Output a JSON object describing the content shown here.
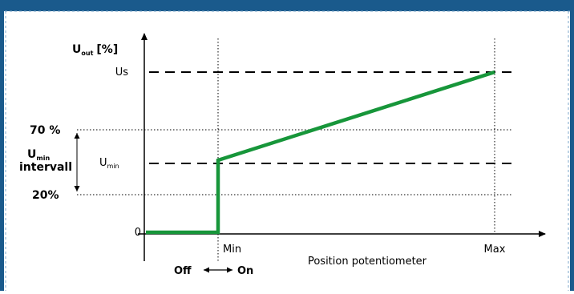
{
  "colors": {
    "frame": "#1a5a8c",
    "curve": "#17963a",
    "axis": "#000000",
    "guide": "#000000"
  },
  "diagram": {
    "y_axis_label_main": "U",
    "y_axis_label_sub": "out",
    "y_axis_label_unit": "[%]",
    "level_us": "Us",
    "level_umin_main": "U",
    "level_umin_sub": "min",
    "level_zero": "0",
    "label_70": "70 %",
    "label_20": "20%",
    "interval_main": "U",
    "interval_sub": "min",
    "interval_word": "intervall",
    "x_min": "Min",
    "x_max": "Max",
    "x_axis_title": "Position potentiometer",
    "off_label": "Off",
    "on_label": "On"
  }
}
